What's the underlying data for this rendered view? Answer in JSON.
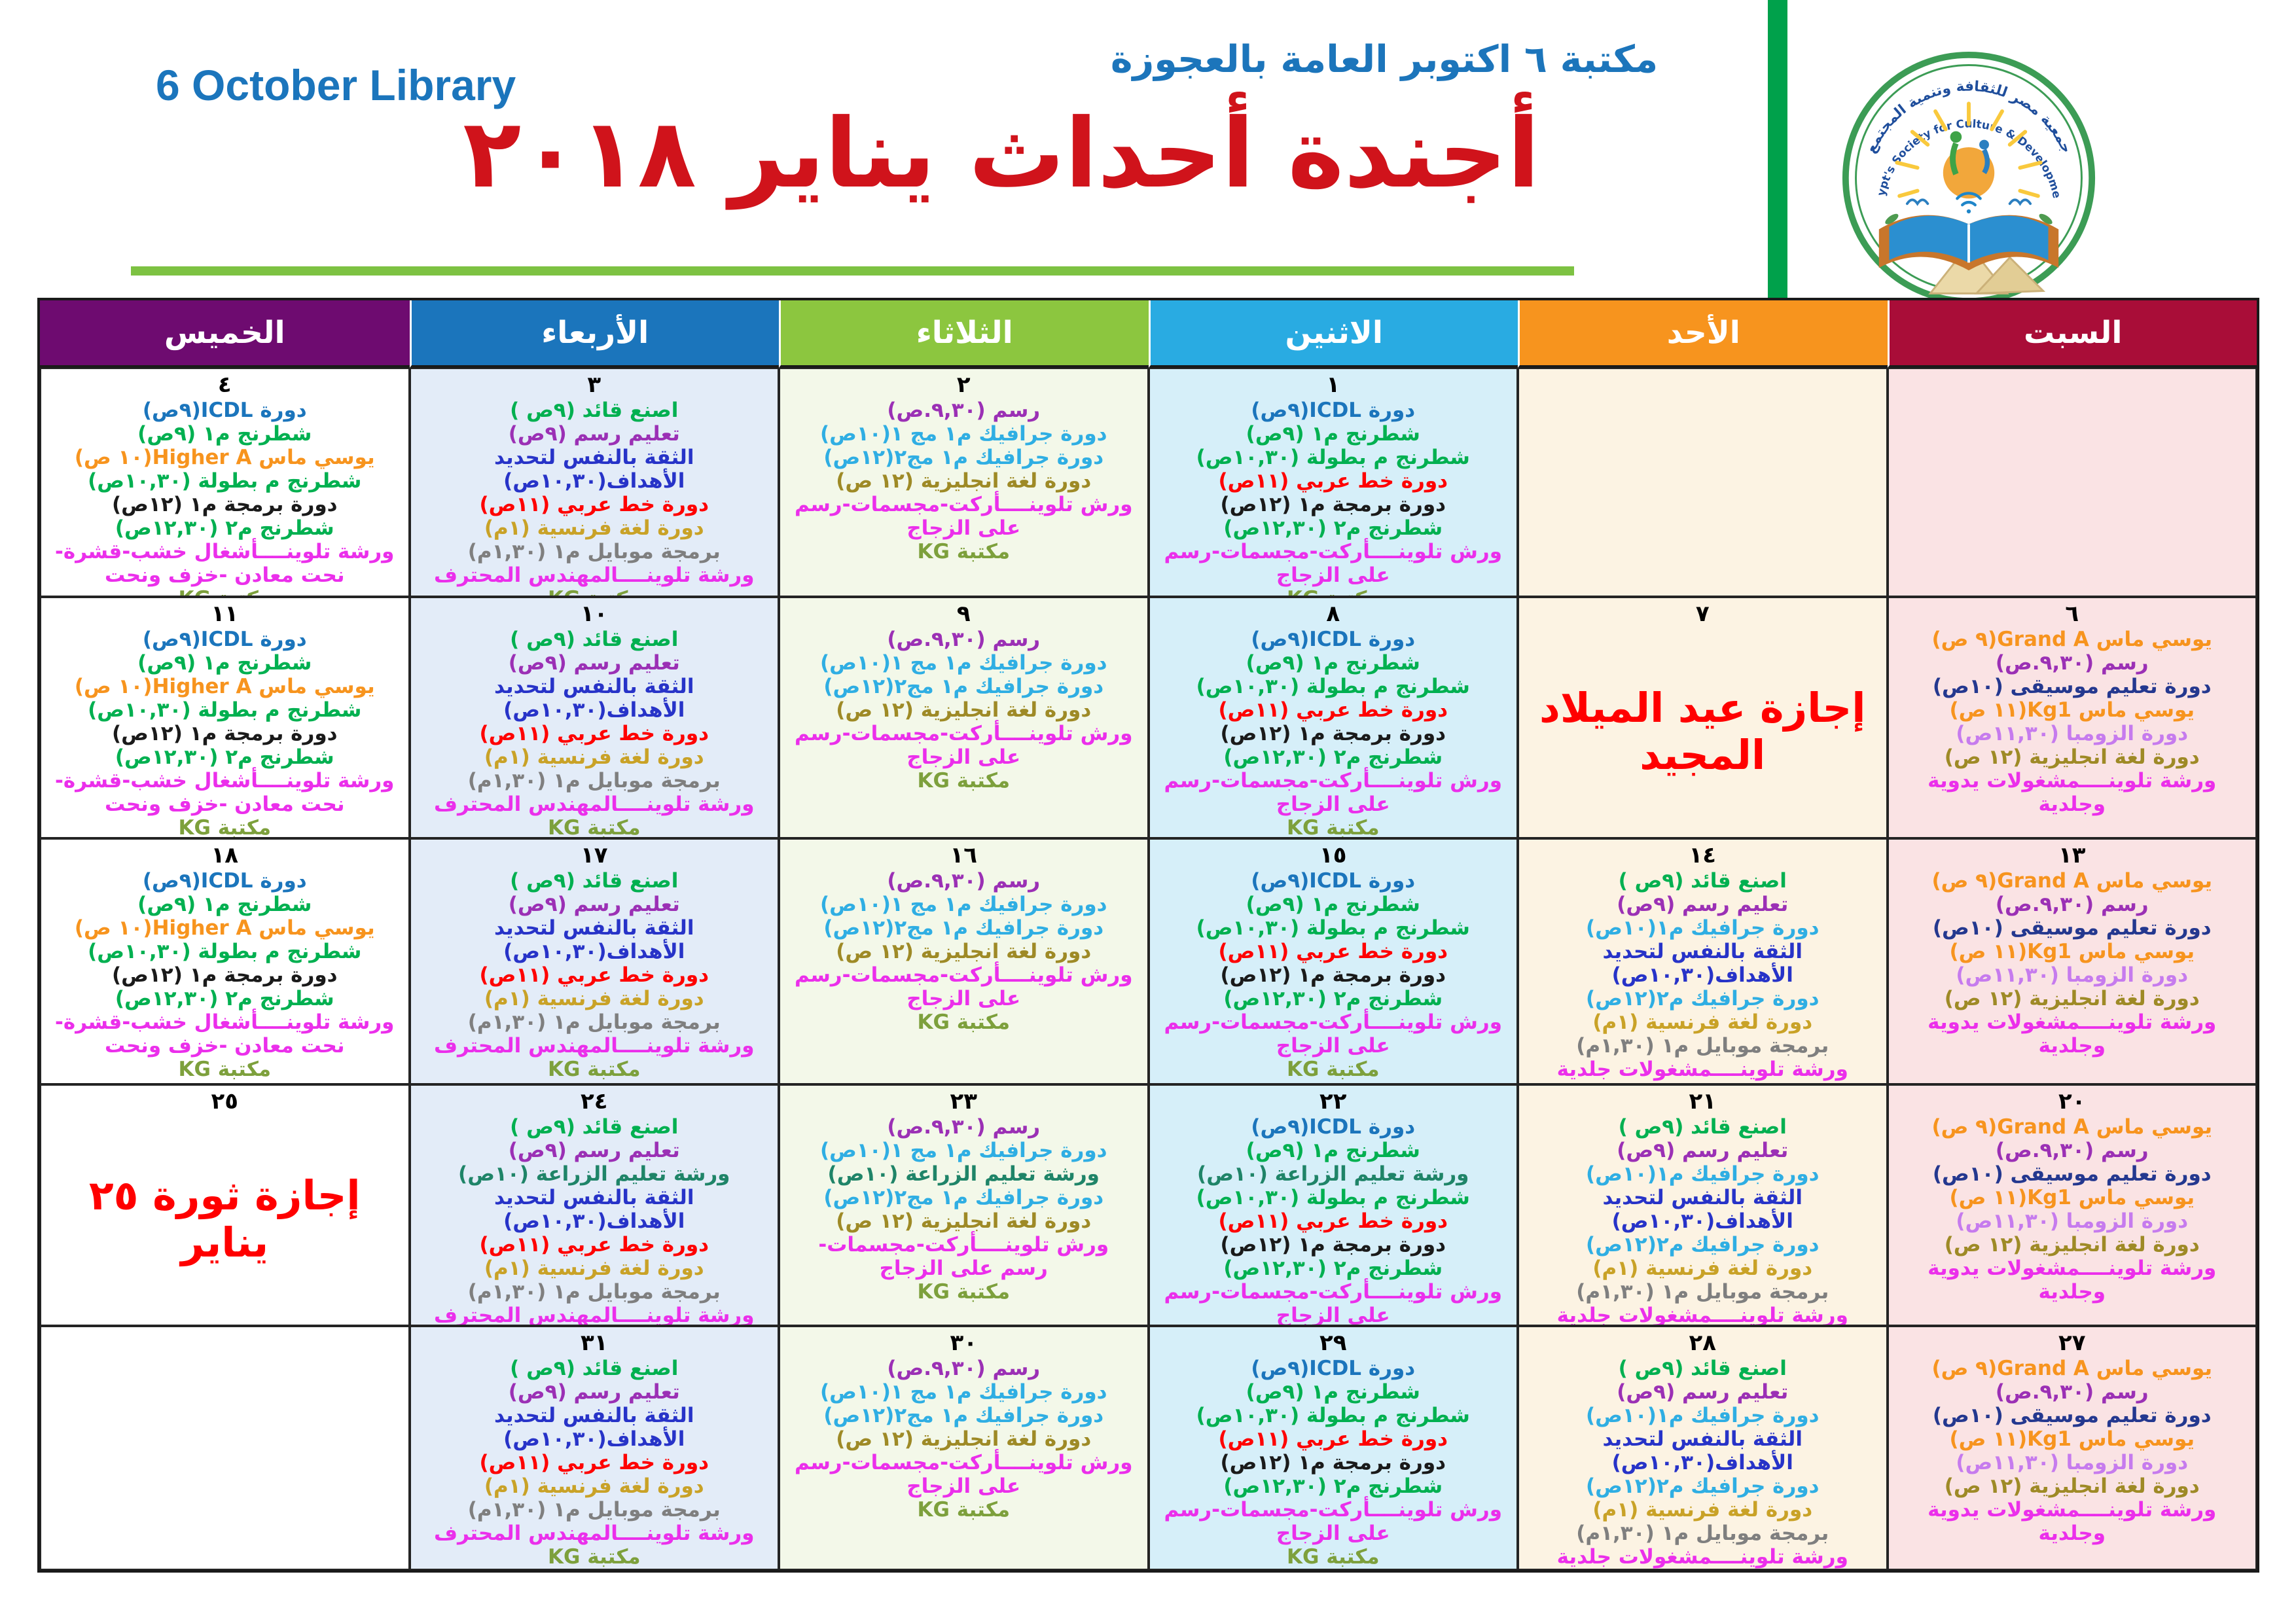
{
  "header": {
    "library_en": "6 October Library",
    "library_ar": "مكتبة ٦ اكتوبر العامة بالعجوزة",
    "title": "أجندة أحداث يناير ٢٠١٨"
  },
  "logo": {
    "arabic": "جمعية مصر للثقافة وتنمية المجتمع",
    "english": "Egypt's Society for Culture & Development"
  },
  "accent_colors": {
    "underline_green": "#7DC242",
    "bar_green": "#00A14B",
    "title_red": "#D0131B",
    "name_blue": "#1C75BB"
  },
  "palette": {
    "blue": "#1B75BC",
    "green": "#00B050",
    "red": "#FF0000",
    "black": "#1A1A1A",
    "magenta": "#EB2FEB",
    "olive": "#7DA03C",
    "purple": "#9B30B5",
    "cyan": "#2FAEE3",
    "royal": "#2733C8",
    "gold": "#C9A227",
    "gray": "#7F7F7F",
    "orange": "#F7941E",
    "navy": "#24388F",
    "violet": "#C67BEE",
    "dkyellow": "#9E8A26",
    "teal": "#1F8468",
    "holiday": "#FF0000"
  },
  "calendar": {
    "day_columns": [
      {
        "key": "sat",
        "label": "السبت",
        "header_bg": "#A90D38",
        "cell_bg": "#FAE3E4"
      },
      {
        "key": "sun",
        "label": "الأحد",
        "header_bg": "#F7941E",
        "cell_bg": "#FCF3E3"
      },
      {
        "key": "mon",
        "label": "الاثنين",
        "header_bg": "#29ABE2",
        "cell_bg": "#D6EFF9"
      },
      {
        "key": "tue",
        "label": "الثلاثاء",
        "header_bg": "#8CC63F",
        "cell_bg": "#F3F8E9"
      },
      {
        "key": "wed",
        "label": "الأربعاء",
        "header_bg": "#1B75BC",
        "cell_bg": "#E3ECF8"
      },
      {
        "key": "thu",
        "label": "الخميس",
        "header_bg": "#6E0B70",
        "cell_bg": "#FFFFFF"
      }
    ],
    "cell_templates": {
      "mon_std": [
        [
          "دورة ICDL(٩ص)",
          "blue"
        ],
        [
          "شطرنج م١ (٩ص)",
          "green"
        ],
        [
          "شطرنج م بطولة (١٠,٣٠ص)",
          "green"
        ],
        [
          "دورة خط عربي (١١ص)",
          "red"
        ],
        [
          "دورة برمجة م١ (١٢ص)",
          "black"
        ],
        [
          "شطرنج م٢ (١٢,٣٠ص)",
          "green"
        ],
        [
          "ورش تلوينــــأركت-مجسمات-رسم على الزجاج",
          "magenta"
        ],
        [
          "مكتبة KG",
          "olive"
        ]
      ],
      "mon_farm": [
        [
          "دورة ICDL(٩ص)",
          "blue"
        ],
        [
          "شطرنج م١ (٩ص)",
          "green"
        ],
        [
          "ورشة تعليم الزراعة (١٠ص)",
          "teal"
        ],
        [
          "شطرنج م بطولة (١٠,٣٠ص)",
          "green"
        ],
        [
          "دورة خط عربي (١١ص)",
          "red"
        ],
        [
          "دورة برمجة م١ (١٢ص)",
          "black"
        ],
        [
          "شطرنج م٢ (١٢,٣٠ص)",
          "green"
        ],
        [
          "ورش تلوينــــأركت-مجسمات-رسم على الزجاج",
          "magenta"
        ],
        [
          "مكتبة KG",
          "olive"
        ]
      ],
      "tue_std": [
        [
          "رسم (٩,٣٠.ص)",
          "purple"
        ],
        [
          "دورة جرافيك م١ مج ١(١٠ص)",
          "cyan"
        ],
        [
          "دورة جرافيك م١ مج٢(١٢ص)",
          "cyan"
        ],
        [
          "دورة لغة انجليزية (١٢ ص)",
          "dkyellow"
        ],
        [
          "ورش تلوينــــأركت-مجسمات-رسم على الزجاج",
          "magenta"
        ],
        [
          "مكتبة KG",
          "olive"
        ]
      ],
      "tue_farm": [
        [
          "رسم (٩,٣٠.ص)",
          "purple"
        ],
        [
          "دورة جرافيك م١ مج ١(١٠ص)",
          "cyan"
        ],
        [
          "ورشة تعليم الزراعة (١٠ص)",
          "teal"
        ],
        [
          "دورة جرافيك م١ مج٢(١٢ص)",
          "cyan"
        ],
        [
          "دورة لغة انجليزية (١٢ ص)",
          "dkyellow"
        ],
        [
          "ورش تلوينــــأركت-مجسمات-",
          "magenta"
        ],
        [
          "رسم على الزجاج",
          "magenta"
        ],
        [
          "مكتبة KG",
          "olive"
        ]
      ],
      "wed_std": [
        [
          "اصنع قائد (٩ص )",
          "green"
        ],
        [
          "تعليم رسم (٩ص)",
          "purple"
        ],
        [
          "الثقة بالنفس لتحديد الأهداف(١٠,٣٠ص)",
          "royal"
        ],
        [
          "دورة خط عربي (١١ص)",
          "red"
        ],
        [
          "دورة لغة فرنسية (١م)",
          "gold"
        ],
        [
          "برمجة موبايل م١ (١,٣٠م)",
          "gray"
        ],
        [
          "ورشة تلوينــــالمهندس المحترف",
          "magenta"
        ],
        [
          "مكتبة KG",
          "olive"
        ]
      ],
      "wed_farm": [
        [
          "اصنع قائد (٩ص )",
          "green"
        ],
        [
          "تعليم رسم (٩ص)",
          "purple"
        ],
        [
          "ورشة تعليم الزراعة (١٠ص)",
          "teal"
        ],
        [
          "الثقة بالنفس لتحديد الأهداف(١٠,٣٠ص)",
          "royal"
        ],
        [
          "دورة خط عربي (١١ص)",
          "red"
        ],
        [
          "دورة لغة فرنسية (١م)",
          "gold"
        ],
        [
          "برمجة موبايل م١ (١,٣٠م)",
          "gray"
        ],
        [
          "ورشة تلوينــــالمهندس المحترف",
          "magenta"
        ],
        [
          "مكتبة KG",
          "olive"
        ]
      ],
      "thu_std": [
        [
          "دورة ICDL(٩ص)",
          "blue"
        ],
        [
          "شطرنج م١ (٩ص)",
          "green"
        ],
        [
          "يوسي ماس Higher A(١٠ ص)",
          "orange"
        ],
        [
          "شطرنج م بطولة (١٠,٣٠ص)",
          "green"
        ],
        [
          "دورة برمجة م١ (١٢ص)",
          "black"
        ],
        [
          "شطرنج م٢ (١٢,٣٠ص)",
          "green"
        ],
        [
          "ورشة تلوينــــأشغال خشب-قشرة-نحت معادن -خزف ونحت",
          "magenta"
        ],
        [
          "مكتبة KG",
          "olive"
        ]
      ],
      "sat_std": [
        [
          "يوسي ماس Grand A(٩ ص)",
          "orange"
        ],
        [
          "رسم (٩,٣٠.ص)",
          "purple"
        ],
        [
          "دورة تعليم موسيقى (١٠ص)",
          "navy"
        ],
        [
          "يوسي ماس Kg1(١١ ص)",
          "orange"
        ],
        [
          "دورة الزومبا (١١,٣٠ص)",
          "violet"
        ],
        [
          "دورة لغة انجليزية (١٢ ص)",
          "dkyellow"
        ],
        [
          "ورشة تلوينــــمشغولات يدوية وجلدية",
          "magenta"
        ]
      ],
      "sun_std": [
        [
          "اصنع قائد (٩ص )",
          "green"
        ],
        [
          "تعليم رسم (٩ص)",
          "purple"
        ],
        [
          "دورة جرافيك م١(١٠ص)",
          "cyan"
        ],
        [
          "الثقة بالنفس لتحديد الأهداف(١٠,٣٠ص)",
          "royal"
        ],
        [
          "دورة جرافيك م٢(١٢ص)",
          "cyan"
        ],
        [
          "دورة لغة فرنسية (١م)",
          "gold"
        ],
        [
          "برمجة موبايل م١ (١,٣٠م)",
          "gray"
        ],
        [
          "ورشة تلوينــــمشغولات جلدية",
          "magenta"
        ],
        [
          "مكتبة KG",
          "olive"
        ]
      ]
    },
    "weeks": [
      [
        {
          "date": "",
          "tpl": null
        },
        {
          "date": "",
          "tpl": null
        },
        {
          "date": "١",
          "tpl": "mon_std"
        },
        {
          "date": "٢",
          "tpl": "tue_std"
        },
        {
          "date": "٣",
          "tpl": "wed_std"
        },
        {
          "date": "٤",
          "tpl": "thu_std"
        }
      ],
      [
        {
          "date": "٦",
          "tpl": "sat_std"
        },
        {
          "date": "٧",
          "holiday": "إجازة عيد الميلاد المجيد"
        },
        {
          "date": "٨",
          "tpl": "mon_std"
        },
        {
          "date": "٩",
          "tpl": "tue_std"
        },
        {
          "date": "١٠",
          "tpl": "wed_std"
        },
        {
          "date": "١١",
          "tpl": "thu_std"
        }
      ],
      [
        {
          "date": "١٣",
          "tpl": "sat_std"
        },
        {
          "date": "١٤",
          "tpl": "sun_std"
        },
        {
          "date": "١٥",
          "tpl": "mon_std"
        },
        {
          "date": "١٦",
          "tpl": "tue_std"
        },
        {
          "date": "١٧",
          "tpl": "wed_std"
        },
        {
          "date": "١٨",
          "tpl": "thu_std"
        }
      ],
      [
        {
          "date": "٢٠",
          "tpl": "sat_std"
        },
        {
          "date": "٢١",
          "tpl": "sun_std"
        },
        {
          "date": "٢٢",
          "tpl": "mon_farm"
        },
        {
          "date": "٢٣",
          "tpl": "tue_farm"
        },
        {
          "date": "٢٤",
          "tpl": "wed_farm"
        },
        {
          "date": "٢٥",
          "holiday": "إجازة ثورة ٢٥ يناير"
        }
      ],
      [
        {
          "date": "٢٧",
          "tpl": "sat_std"
        },
        {
          "date": "٢٨",
          "tpl": "sun_std"
        },
        {
          "date": "٢٩",
          "tpl": "mon_std"
        },
        {
          "date": "٣٠",
          "tpl": "tue_std"
        },
        {
          "date": "٣١",
          "tpl": "wed_std"
        },
        {
          "date": "",
          "tpl": null
        }
      ]
    ]
  }
}
